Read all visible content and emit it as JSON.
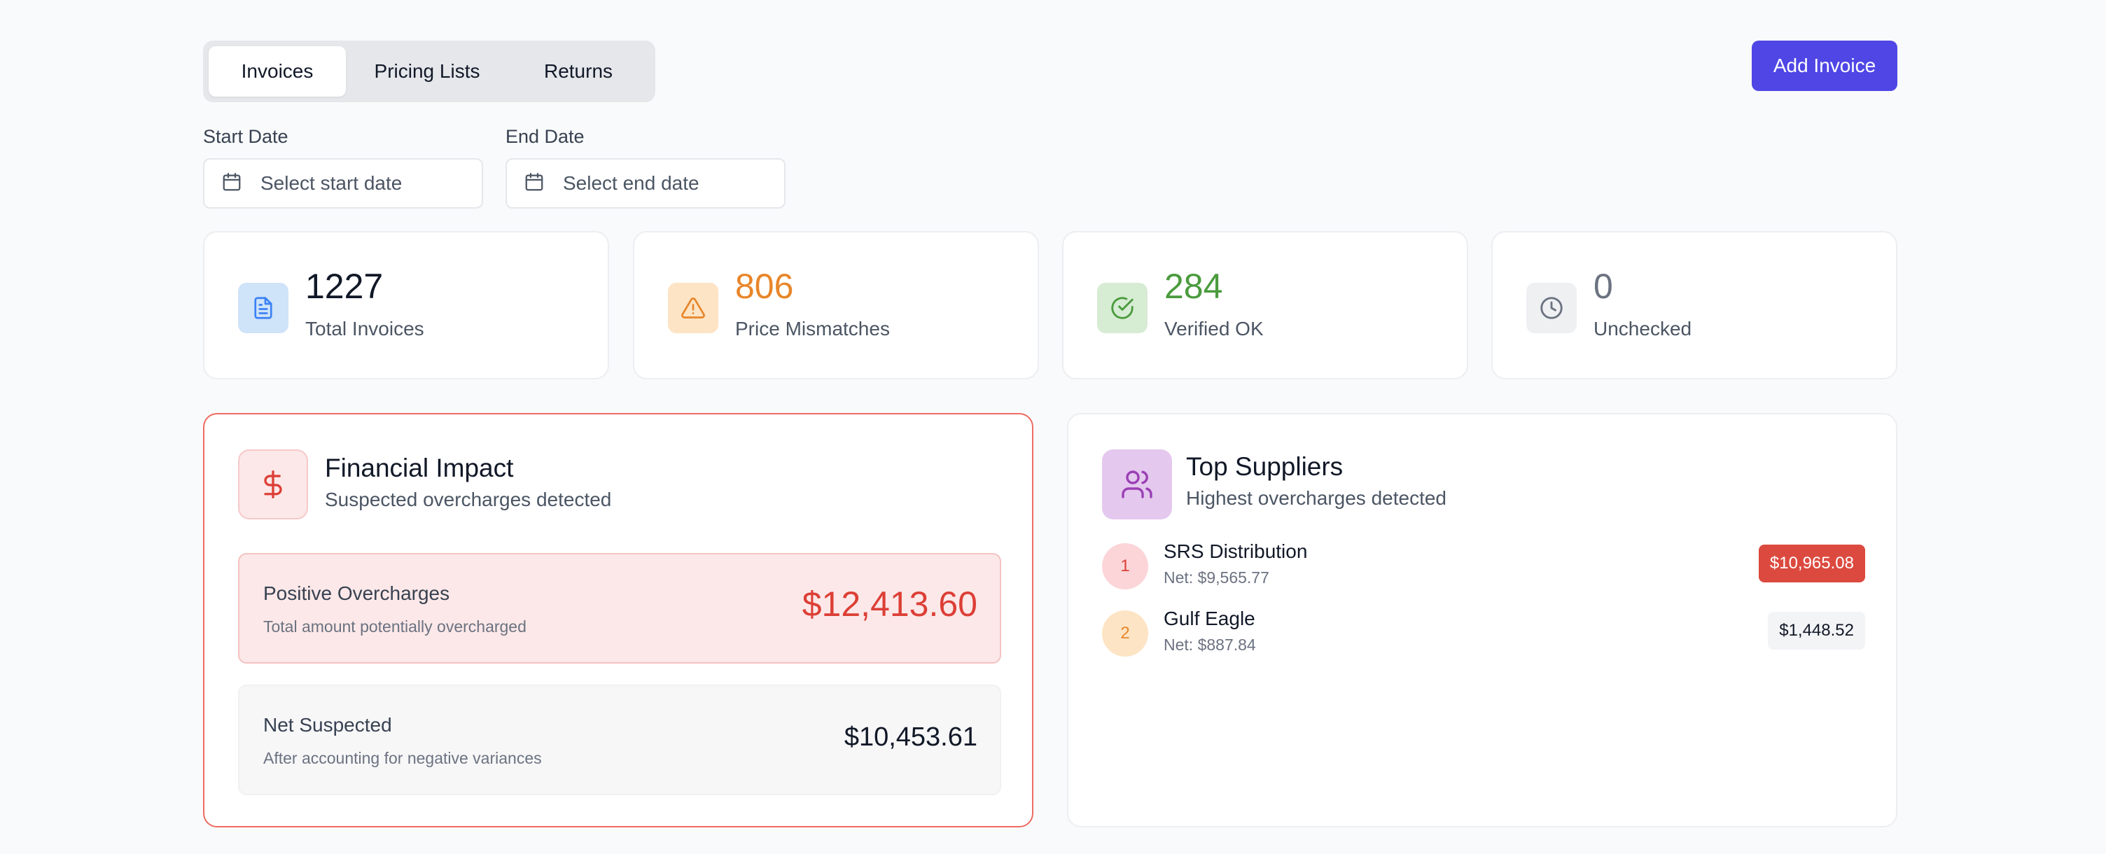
{
  "tabs": [
    {
      "label": "Invoices",
      "active": true
    },
    {
      "label": "Pricing Lists",
      "active": false
    },
    {
      "label": "Returns",
      "active": false
    }
  ],
  "actions": {
    "add_invoice": "Add Invoice"
  },
  "filters": {
    "start": {
      "label": "Start Date",
      "placeholder": "Select start date",
      "icon": "calendar-icon"
    },
    "end": {
      "label": "End Date",
      "placeholder": "Select end date",
      "icon": "calendar-icon"
    }
  },
  "stats": [
    {
      "value": "1227",
      "label": "Total Invoices",
      "icon": "document-icon",
      "color": "#111827",
      "icon_color": "#3b82f6",
      "icon_bg": "#cfe3f9"
    },
    {
      "value": "806",
      "label": "Price Mismatches",
      "icon": "warning-icon",
      "color": "#e8862a",
      "icon_color": "#e8862a",
      "icon_bg": "#fde4c4"
    },
    {
      "value": "284",
      "label": "Verified OK",
      "icon": "check-circle-icon",
      "color": "#4b9b3e",
      "icon_color": "#4b9b3e",
      "icon_bg": "#d6ecd3"
    },
    {
      "value": "0",
      "label": "Unchecked",
      "icon": "clock-icon",
      "color": "#6b7280",
      "icon_color": "#6b7280",
      "icon_bg": "#eef0f2"
    }
  ],
  "financial": {
    "icon": "dollar-icon",
    "title": "Financial Impact",
    "subtitle": "Suspected overcharges detected",
    "positive": {
      "title": "Positive Overcharges",
      "subtitle": "Total amount potentially overcharged",
      "amount": "$12,413.60"
    },
    "net": {
      "title": "Net Suspected",
      "subtitle": "After accounting for negative variances",
      "amount": "$10,453.61"
    }
  },
  "suppliers": {
    "icon": "users-icon",
    "title": "Top Suppliers",
    "subtitle": "Highest overcharges detected",
    "items": [
      {
        "rank": "1",
        "name": "SRS Distribution",
        "net": "Net: $9,565.77",
        "amount": "$10,965.08",
        "badge_bg": "#dc4a3f",
        "badge_color": "#ffffff",
        "rank_bg": "#fbd5d8",
        "rank_color": "#dc3f36"
      },
      {
        "rank": "2",
        "name": "Gulf Eagle",
        "net": "Net: $887.84",
        "amount": "$1,448.52",
        "badge_bg": "#f3f4f6",
        "badge_color": "#111827",
        "rank_bg": "#fde4c4",
        "rank_color": "#e8862a"
      }
    ]
  },
  "colors": {
    "accent": "#4f46e5",
    "danger": "#dc3f36",
    "warning": "#e8862a",
    "success": "#4b9b3e"
  }
}
